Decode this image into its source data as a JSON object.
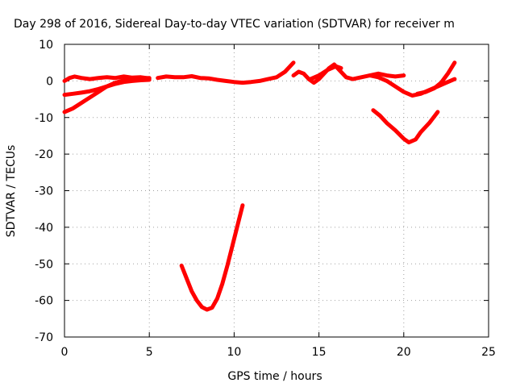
{
  "chart_data": {
    "type": "line",
    "title": "Day 298 of 2016, Sidereal Day-to-day VTEC variation (SDTVAR) for receiver m",
    "xlabel": "GPS time / hours",
    "ylabel": "SDTVAR / TECUs",
    "xlim": [
      0,
      25
    ],
    "ylim": [
      -70,
      10
    ],
    "xticks": [
      0,
      5,
      10,
      15,
      20,
      25
    ],
    "yticks": [
      10,
      0,
      -10,
      -20,
      -30,
      -40,
      -50,
      -60,
      -70
    ],
    "grid": true,
    "legend": "none",
    "series_color": "#ff0000",
    "series": [
      {
        "x": [
          0.0,
          0.3,
          0.6,
          1.0,
          1.5,
          2.0,
          2.5,
          3.0,
          3.5,
          4.0,
          4.5,
          5.0
        ],
        "y": [
          0.0,
          0.8,
          1.2,
          0.8,
          0.5,
          0.8,
          1.0,
          0.8,
          1.2,
          0.9,
          1.0,
          0.7
        ]
      },
      {
        "x": [
          0.0,
          0.5,
          1.0,
          1.5,
          2.0,
          2.5,
          3.0,
          3.5,
          4.0,
          4.5,
          5.0
        ],
        "y": [
          -3.8,
          -3.5,
          -3.2,
          -2.8,
          -2.2,
          -1.5,
          -0.8,
          -0.3,
          0.0,
          0.2,
          0.3
        ]
      },
      {
        "x": [
          0.0,
          0.5,
          1.0,
          1.5,
          2.0,
          2.5,
          3.0,
          3.5,
          4.0,
          4.5,
          5.0
        ],
        "y": [
          -8.5,
          -7.5,
          -6.0,
          -4.5,
          -3.0,
          -1.5,
          -0.5,
          0.2,
          0.5,
          0.7,
          0.8
        ]
      },
      {
        "x": [
          5.5,
          6.0,
          6.5,
          7.0,
          7.5,
          8.0,
          8.5,
          9.0,
          9.5,
          10.0,
          10.5,
          11.0,
          11.5,
          12.0,
          12.5,
          13.0,
          13.5
        ],
        "y": [
          0.8,
          1.2,
          1.0,
          1.0,
          1.3,
          0.8,
          0.7,
          0.3,
          0.0,
          -0.3,
          -0.5,
          -0.3,
          0.0,
          0.5,
          1.0,
          2.5,
          5.0
        ]
      },
      {
        "x": [
          13.5,
          13.8,
          14.1,
          14.4,
          14.7,
          15.0,
          15.3,
          15.6,
          15.9,
          16.2,
          16.6,
          17.0,
          17.5,
          18.0,
          18.5,
          19.0,
          19.5,
          20.0
        ],
        "y": [
          1.5,
          2.5,
          2.0,
          0.5,
          -0.5,
          0.5,
          2.0,
          3.5,
          4.5,
          3.0,
          1.0,
          0.5,
          1.0,
          1.5,
          2.0,
          1.5,
          1.2,
          1.5
        ]
      },
      {
        "x": [
          14.5,
          15.0,
          15.5,
          16.0,
          16.3
        ],
        "y": [
          0.5,
          1.5,
          3.0,
          4.0,
          3.5
        ]
      },
      {
        "x": [
          18.0,
          18.5,
          19.0,
          19.5,
          20.0,
          20.5,
          21.0,
          21.5,
          22.0,
          22.5,
          23.0
        ],
        "y": [
          1.5,
          1.0,
          0.0,
          -1.5,
          -3.0,
          -4.0,
          -3.5,
          -2.5,
          -1.5,
          -0.5,
          0.5
        ]
      },
      {
        "x": [
          20.8,
          21.3,
          21.8,
          22.2,
          22.6,
          23.0
        ],
        "y": [
          -3.5,
          -3.0,
          -2.0,
          -0.5,
          2.0,
          5.0
        ]
      },
      {
        "x": [
          18.2,
          18.6,
          19.0,
          19.5,
          20.0,
          20.3,
          20.7,
          21.0,
          21.5,
          22.0
        ],
        "y": [
          -8.0,
          -9.5,
          -11.5,
          -13.5,
          -15.8,
          -16.8,
          -16.0,
          -14.0,
          -11.5,
          -8.5
        ]
      },
      {
        "x": [
          6.9,
          7.2,
          7.5,
          7.8,
          8.1,
          8.4,
          8.7,
          9.0,
          9.3,
          9.6,
          9.9,
          10.2,
          10.5
        ],
        "y": [
          -50.5,
          -54.0,
          -57.5,
          -60.0,
          -61.8,
          -62.5,
          -62.0,
          -59.5,
          -55.5,
          -50.5,
          -45.0,
          -39.5,
          -34.0
        ]
      }
    ]
  }
}
